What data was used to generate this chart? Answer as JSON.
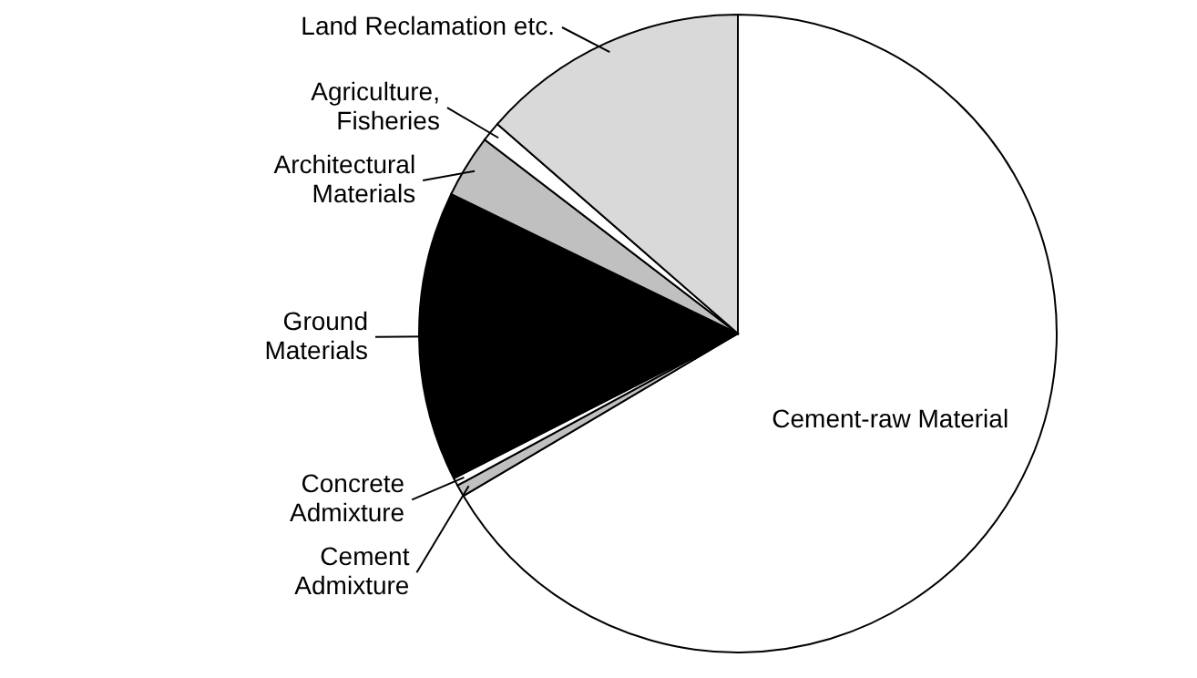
{
  "chart_data": {
    "type": "pie",
    "categories": [
      "Cement-raw Material",
      "Cement Admixture",
      "Concrete Admixture",
      "Ground Materials",
      "Architectural Materials",
      "Agriculture, Fisheries",
      "Land Reclamation etc."
    ],
    "values": [
      66.5,
      0.6,
      0.4,
      14.7,
      3.2,
      1.0,
      13.6
    ],
    "colors": [
      "#ffffff",
      "#c0c0c0",
      "#ffffff",
      "#000000",
      "#c0c0c0",
      "#ffffff",
      "#d9d9d9"
    ]
  }
}
